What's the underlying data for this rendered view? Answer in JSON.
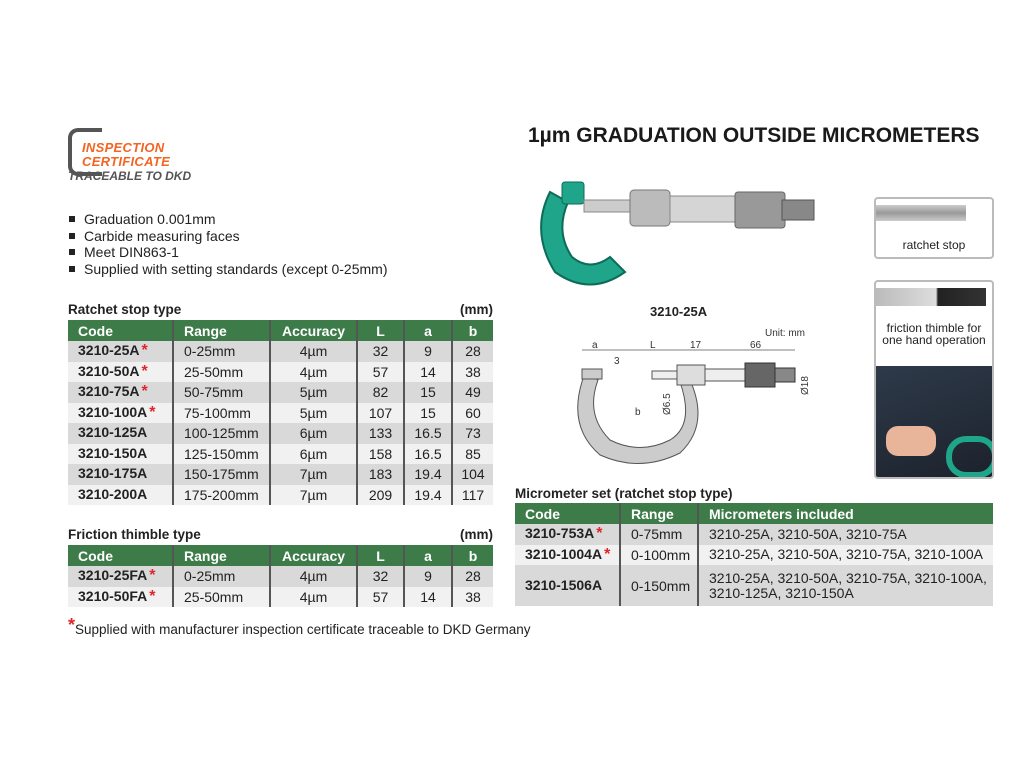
{
  "title": "1µm GRADUATION OUTSIDE MICROMETERS",
  "logo": {
    "line1": "INSPECTION",
    "line2": "CERTIFICATE",
    "line3": "TRACEABLE TO DKD"
  },
  "features": [
    "Graduation 0.001mm",
    "Carbide measuring faces",
    "Meet DIN863-1",
    "Supplied with setting standards (except 0-25mm)"
  ],
  "ratchet": {
    "title": "Ratchet stop type",
    "unit": "(mm)",
    "headers": [
      "Code",
      "Range",
      "Accuracy",
      "L",
      "a",
      "b"
    ],
    "rows": [
      {
        "code": "3210-25A",
        "star": "*",
        "range": "0-25mm",
        "acc": "4µm",
        "L": "32",
        "a": "9",
        "b": "28"
      },
      {
        "code": "3210-50A",
        "star": "*",
        "range": "25-50mm",
        "acc": "4µm",
        "L": "57",
        "a": "14",
        "b": "38"
      },
      {
        "code": "3210-75A",
        "star": "*",
        "range": "50-75mm",
        "acc": "5µm",
        "L": "82",
        "a": "15",
        "b": "49"
      },
      {
        "code": "3210-100A",
        "star": "*",
        "range": "75-100mm",
        "acc": "5µm",
        "L": "107",
        "a": "15",
        "b": "60"
      },
      {
        "code": "3210-125A",
        "star": "",
        "range": "100-125mm",
        "acc": "6µm",
        "L": "133",
        "a": "16.5",
        "b": "73"
      },
      {
        "code": "3210-150A",
        "star": "",
        "range": "125-150mm",
        "acc": "6µm",
        "L": "158",
        "a": "16.5",
        "b": "85"
      },
      {
        "code": "3210-175A",
        "star": "",
        "range": "150-175mm",
        "acc": "7µm",
        "L": "183",
        "a": "19.4",
        "b": "104"
      },
      {
        "code": "3210-200A",
        "star": "",
        "range": "175-200mm",
        "acc": "7µm",
        "L": "209",
        "a": "19.4",
        "b": "117"
      }
    ]
  },
  "friction": {
    "title": "Friction thimble type",
    "unit": "(mm)",
    "headers": [
      "Code",
      "Range",
      "Accuracy",
      "L",
      "a",
      "b"
    ],
    "rows": [
      {
        "code": "3210-25FA",
        "star": "*",
        "range": "0-25mm",
        "acc": "4µm",
        "L": "32",
        "a": "9",
        "b": "28"
      },
      {
        "code": "3210-50FA",
        "star": "*",
        "range": "25-50mm",
        "acc": "4µm",
        "L": "57",
        "a": "14",
        "b": "38"
      }
    ]
  },
  "footnote": {
    "star": "*",
    "text": "Supplied with manufacturer inspection certificate traceable to DKD Germany"
  },
  "product_label": "3210-25A",
  "diagram": {
    "unit": "Unit: mm",
    "a": "a",
    "L": "L",
    "d17": "17",
    "d66": "66",
    "d3": "3",
    "b": "b",
    "d65": "Ø6.5",
    "d18": "Ø18"
  },
  "ratchet_caption": "ratchet stop",
  "friction_caption": "friction thimble for one hand operation",
  "set": {
    "title": "Micrometer set (ratchet stop type)",
    "headers": [
      "Code",
      "Range",
      "Micrometers included"
    ],
    "rows": [
      {
        "code": "3210-753A",
        "star": "*",
        "range": "0-75mm",
        "inc": "3210-25A, 3210-50A, 3210-75A"
      },
      {
        "code": "3210-1004A",
        "star": "*",
        "range": "0-100mm",
        "inc": "3210-25A, 3210-50A, 3210-75A, 3210-100A"
      },
      {
        "code": "3210-1506A",
        "star": "",
        "range": "0-150mm",
        "inc": "3210-25A, 3210-50A, 3210-75A, 3210-100A, 3210-125A, 3210-150A"
      }
    ]
  },
  "colors": {
    "header_green": "#3d7b49",
    "star_red": "#e0262a",
    "logo_orange": "#f26522",
    "micrometer_green": "#1fa58a"
  }
}
